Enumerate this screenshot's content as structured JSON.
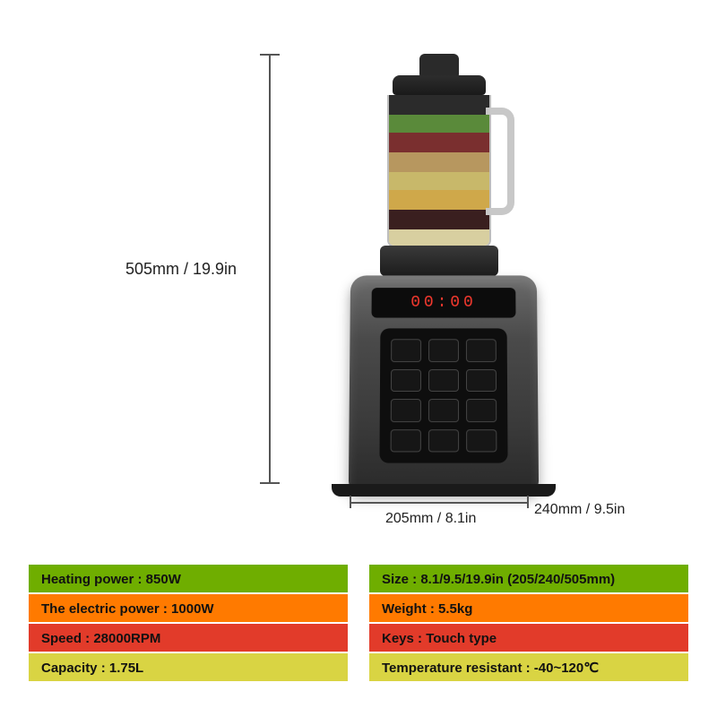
{
  "dimensions": {
    "height_label": "505mm / 19.9in",
    "width_label": "205mm / 8.1in",
    "depth_label": "240mm / 9.5in"
  },
  "product": {
    "display_text": "00:00",
    "jar_layer_colors": [
      "#2b2b2b",
      "#5a8a3a",
      "#7a2f2f",
      "#b7975f",
      "#c8b86a",
      "#cfa84a",
      "#3a1f1f",
      "#d8cfa0"
    ],
    "base_color": "#4a4a4a",
    "panel_color": "#0e0e0e",
    "touch_button_count": 12
  },
  "spec_row_colors": [
    "#6fae00",
    "#ff7a00",
    "#e23b2a",
    "#d9d443"
  ],
  "specs_left": [
    {
      "label": "Heating power",
      "value": "850W"
    },
    {
      "label": "The electric power",
      "value": "1000W"
    },
    {
      "label": "Speed",
      "value": "28000RPM"
    },
    {
      "label": "Capacity",
      "value": "1.75L"
    }
  ],
  "specs_right": [
    {
      "label": "Size",
      "value": "8.1/9.5/19.9in  (205/240/505mm)"
    },
    {
      "label": "Weight",
      "value": "5.5kg"
    },
    {
      "label": "Keys",
      "value": "Touch type"
    },
    {
      "label": "Temperature resistant",
      "value": "-40~120℃"
    }
  ],
  "background_color": "#ffffff",
  "text_color": "#111111",
  "dim_line_color": "#555555",
  "label_fontsize": 18,
  "spec_fontsize": 15
}
